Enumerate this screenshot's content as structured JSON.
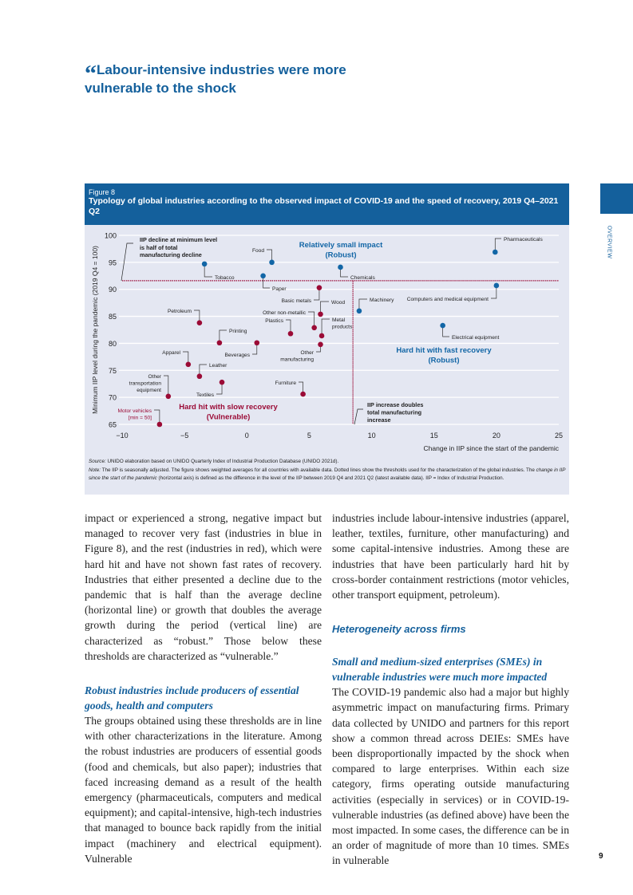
{
  "headline": {
    "quote_mark": "“",
    "text": "Labour-intensive industries were more vulnerable to the shock"
  },
  "side_label": "OVERVIEW",
  "colors": {
    "brand_blue": "#14609c",
    "robust_blue": "#1266a6",
    "vulnerable_red": "#9b0b36",
    "figure_bg": "#e4e7f2"
  },
  "figure": {
    "number": "Figure 8",
    "title": "Typology of global industries according to the observed impact of COVID-19 and the speed of recovery, 2019 Q4–2021 Q2",
    "source_label": "Source:",
    "source": "UNIDO elaboration based on UNIDO Quarterly Index of Industrial Production Database (UNIDO 2021d).",
    "note_label": "Note:",
    "note_1": "The IIP is seasonally adjusted. The figure shows weighted averages for all countries with available data. Dotted lines show the thresholds used for the characterization of the global industries. The",
    "note_italic": "change in IIP since the start of the pandemic",
    "note_2": "(horizontal axis) is defined as the difference in the level of the IIP between 2019 Q4 and 2021 Q2 (latest available data). IIP = Index of Industrial Production."
  },
  "chart_data": {
    "type": "scatter",
    "xlabel": "Change in IIP since the start of the pandemic",
    "ylabel": "Minimum IIP level during the pandemic (2019 Q4 = 100)",
    "xlim": [
      -10,
      25
    ],
    "ylim": [
      65,
      100
    ],
    "xticks": [
      -10,
      -5,
      0,
      5,
      10,
      15,
      20,
      25
    ],
    "yticks": [
      65,
      70,
      75,
      80,
      85,
      90,
      95,
      100
    ],
    "x_tick_labels": [
      "−10",
      "−5",
      "0",
      "5",
      "10",
      "15",
      "20",
      "25"
    ],
    "grid": "horizontal",
    "thresholds": {
      "horizontal_y": 91.6,
      "vertical_x": 8.5
    },
    "points": [
      {
        "label": "Tobacco",
        "x": -3.4,
        "y": 94.7,
        "group": "robust"
      },
      {
        "label": "Food",
        "x": 2.0,
        "y": 95.0,
        "group": "robust"
      },
      {
        "label": "Paper",
        "x": 1.3,
        "y": 92.5,
        "group": "robust"
      },
      {
        "label": "Chemicals",
        "x": 7.5,
        "y": 94.1,
        "group": "robust"
      },
      {
        "label": "Pharmaceuticals",
        "x": 19.9,
        "y": 96.9,
        "group": "robust"
      },
      {
        "label": "Computers and medical equipment",
        "x": 20.0,
        "y": 90.7,
        "group": "robust"
      },
      {
        "label": "Machinery",
        "x": 9.0,
        "y": 86.0,
        "group": "robust"
      },
      {
        "label": "Electrical equipment",
        "x": 15.7,
        "y": 83.3,
        "group": "robust"
      },
      {
        "label": "Basic metals",
        "x": 5.8,
        "y": 90.3,
        "group": "vulnerable"
      },
      {
        "label": "Wood",
        "x": 5.9,
        "y": 85.4,
        "group": "vulnerable"
      },
      {
        "label": "Other non-metallic",
        "x": 5.4,
        "y": 82.9,
        "group": "vulnerable"
      },
      {
        "label": "Plastics",
        "x": 3.5,
        "y": 81.8,
        "group": "vulnerable"
      },
      {
        "label": "Metal products",
        "x": 6.0,
        "y": 81.4,
        "group": "vulnerable"
      },
      {
        "label": "Other manufacturing",
        "x": 5.9,
        "y": 79.8,
        "group": "vulnerable"
      },
      {
        "label": "Beverages",
        "x": 0.8,
        "y": 80.1,
        "group": "vulnerable"
      },
      {
        "label": "Printing",
        "x": -2.2,
        "y": 80.1,
        "group": "vulnerable"
      },
      {
        "label": "Petroleum",
        "x": -3.8,
        "y": 83.8,
        "group": "vulnerable"
      },
      {
        "label": "Apparel",
        "x": -4.7,
        "y": 76.1,
        "group": "vulnerable"
      },
      {
        "label": "Leather",
        "x": -3.8,
        "y": 73.9,
        "group": "vulnerable"
      },
      {
        "label": "Textiles",
        "x": -2.0,
        "y": 72.8,
        "group": "vulnerable"
      },
      {
        "label": "Other transportation equipment",
        "x": -6.3,
        "y": 70.2,
        "group": "vulnerable"
      },
      {
        "label": "Furniture",
        "x": 4.5,
        "y": 70.6,
        "group": "vulnerable"
      },
      {
        "label": "Motor vehicles [min = 50]",
        "x": -7.0,
        "y": 65.0,
        "group": "vulnerable"
      }
    ],
    "annotations": {
      "h_threshold": "IIP decline at minimum level is half of total manufacturing decline",
      "v_threshold": "IIP increase doubles total manufacturing increase",
      "q_top": "Relatively small impact (Robust)",
      "q_right": "Hard hit with fast recovery (Robust)",
      "q_bottom": "Hard hit with slow recovery (Vulnerable)"
    }
  },
  "body": {
    "left_p1": "impact or experienced a strong, negative impact but managed to recover very fast (industries in blue in Figure 8), and the rest (industries in red), which were hard hit and have not shown fast rates of recovery. Industries that either presented a decline due to the pandemic that is half than the average decline (horizontal line) or growth that doubles the average growth during the period (vertical line) are characterized as “robust.” Those below these thresholds are characterized as “vulnerable.”",
    "left_subhead": "Robust industries include producers of essential goods, health and computers",
    "left_p2": "The groups obtained using these thresholds are in line with other characterizations in the literature. Among the robust industries are producers of essential goods (food and chemicals, but also paper); industries that faced increasing demand as a result of the health emergency (pharmaceuticals, computers and medical equipment); and capital-intensive, high-tech industries that managed to bounce back rapidly from the initial impact (machinery and electrical equipment). Vulnerable",
    "right_p1": "industries include labour-intensive industries (apparel, leather, textiles, furniture, other manufacturing) and some capital-intensive industries. Among these are industries that have been particularly hard hit by cross-border containment restrictions (motor vehicles, other transport equipment, petroleum).",
    "right_section": "Heterogeneity across firms",
    "right_subhead": "Small and medium-sized enterprises (SMEs) in vulnerable industries were much more impacted",
    "right_p2": "The COVID-19 pandemic also had a major but highly asymmetric impact on manufacturing firms. Primary data collected by UNIDO and partners for this report show a common thread across DEIEs: SMEs have been disproportionally impacted by the shock when compared to large enterprises. Within each size category, firms operating outside manufacturing activities (especially in services) or in COVID-19-vulnerable industries (as defined above) have been the most impacted. In some cases, the difference can be in an order of magnitude of more than 10 times. SMEs in vulnerable"
  },
  "page_number": "9"
}
